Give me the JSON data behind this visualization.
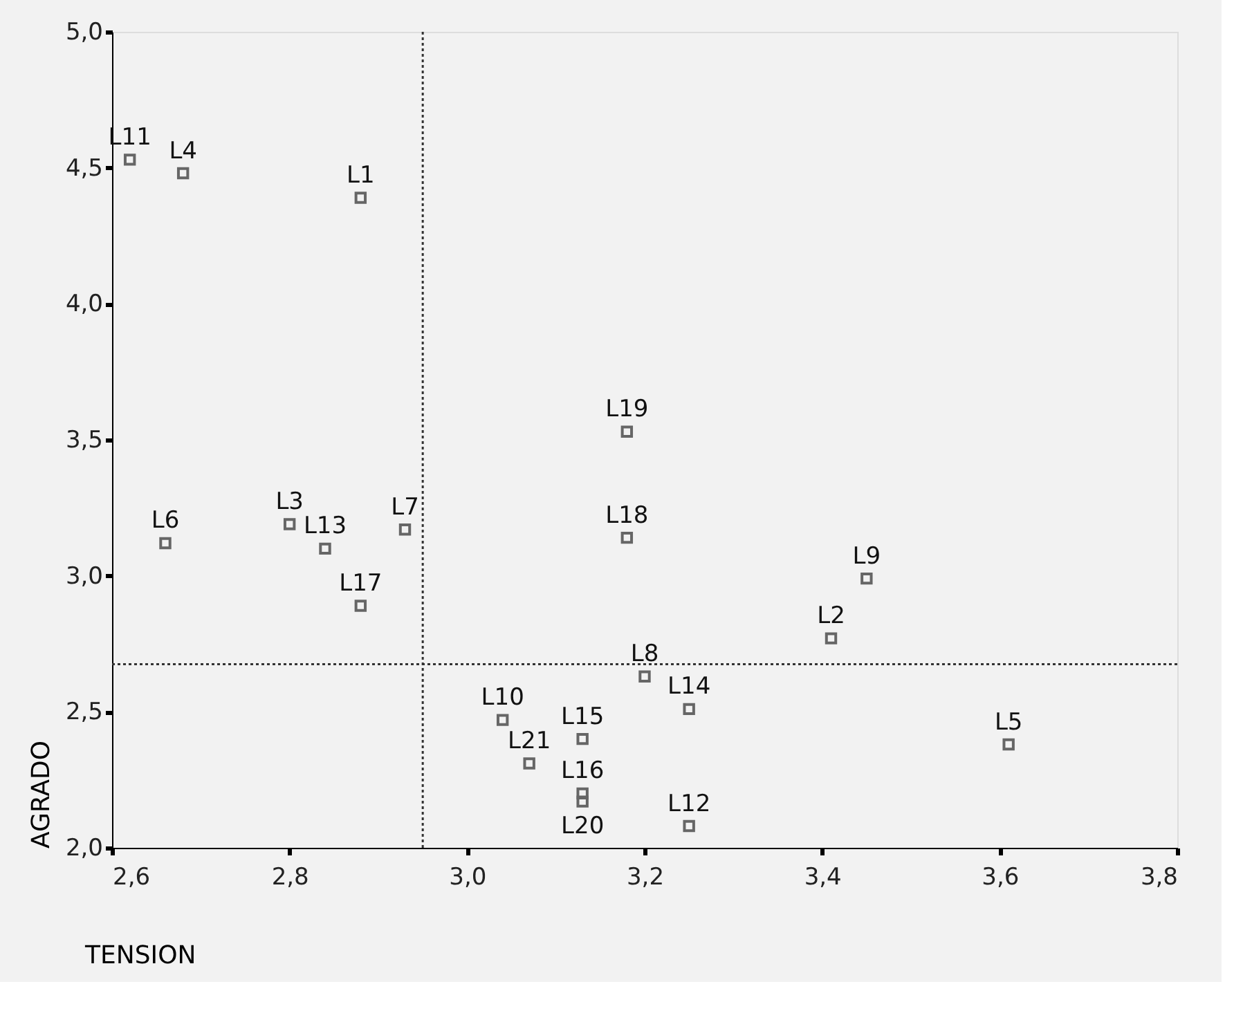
{
  "chart_data": {
    "type": "scatter",
    "xlabel": "TENSION",
    "ylabel": "AGRADO",
    "x": [
      2.88,
      3.41,
      2.8,
      2.68,
      3.61,
      2.66,
      2.93,
      3.2,
      3.45,
      3.04,
      2.62,
      3.25,
      2.84,
      3.25,
      3.13,
      3.13,
      2.88,
      3.18,
      3.18,
      3.13,
      3.07
    ],
    "series": [
      {
        "color": "#666666",
        "values": [
          4.39,
          2.77,
          3.19,
          4.48,
          2.38,
          3.12,
          3.17,
          2.63,
          2.99,
          2.47,
          4.53,
          2.08,
          3.1,
          2.51,
          2.4,
          2.2,
          2.89,
          3.14,
          3.53,
          2.17,
          2.31
        ]
      }
    ],
    "annotations": [
      {
        "text": "L1",
        "x": 2.88,
        "y": 4.39
      },
      {
        "text": "L2",
        "x": 3.41,
        "y": 2.77
      },
      {
        "text": "L3",
        "x": 2.8,
        "y": 3.19
      },
      {
        "text": "L4",
        "x": 2.68,
        "y": 4.48
      },
      {
        "text": "L5",
        "x": 3.61,
        "y": 2.38
      },
      {
        "text": "L6",
        "x": 2.66,
        "y": 3.12
      },
      {
        "text": "L7",
        "x": 2.93,
        "y": 3.17
      },
      {
        "text": "L8",
        "x": 3.2,
        "y": 2.63
      },
      {
        "text": "L9",
        "x": 3.45,
        "y": 2.99
      },
      {
        "text": "L10",
        "x": 3.04,
        "y": 2.47
      },
      {
        "text": "L11",
        "x": 2.62,
        "y": 4.53
      },
      {
        "text": "L12",
        "x": 3.25,
        "y": 2.08
      },
      {
        "text": "L13",
        "x": 2.84,
        "y": 3.1
      },
      {
        "text": "L14",
        "x": 3.25,
        "y": 2.51
      },
      {
        "text": "L15",
        "x": 3.13,
        "y": 2.4
      },
      {
        "text": "L16",
        "x": 3.13,
        "y": 2.2
      },
      {
        "text": "L17",
        "x": 2.88,
        "y": 2.89
      },
      {
        "text": "L18",
        "x": 3.18,
        "y": 3.14
      },
      {
        "text": "L19",
        "x": 3.18,
        "y": 3.53
      },
      {
        "text": "L20",
        "x": 3.13,
        "y": 2.17
      },
      {
        "text": "L21",
        "x": 3.07,
        "y": 2.31
      }
    ],
    "xlim": [
      2.6,
      3.8
    ],
    "ylim": [
      2.0,
      5.0
    ],
    "xticks": [
      {
        "value": 2.6,
        "label": "2,6"
      },
      {
        "value": 2.8,
        "label": "2,8"
      },
      {
        "value": 3.0,
        "label": "3,0"
      },
      {
        "value": 3.2,
        "label": "3,2"
      },
      {
        "value": 3.4,
        "label": "3,4"
      },
      {
        "value": 3.6,
        "label": "3,6"
      },
      {
        "value": 3.8,
        "label": "3,8"
      }
    ],
    "yticks": [
      {
        "value": 2.0,
        "label": "2,0"
      },
      {
        "value": 2.5,
        "label": "2,5"
      },
      {
        "value": 3.0,
        "label": "3,0"
      },
      {
        "value": 3.5,
        "label": "3,5"
      },
      {
        "value": 4.0,
        "label": "4,0"
      },
      {
        "value": 4.5,
        "label": "4,5"
      },
      {
        "value": 5.0,
        "label": "5,0"
      }
    ],
    "ref_lines": [
      {
        "axis": "x",
        "value": 2.95,
        "line_style": "dotted"
      },
      {
        "axis": "y",
        "value": 2.675,
        "line_style": "dotted"
      }
    ],
    "marker": "square",
    "grid": false
  }
}
